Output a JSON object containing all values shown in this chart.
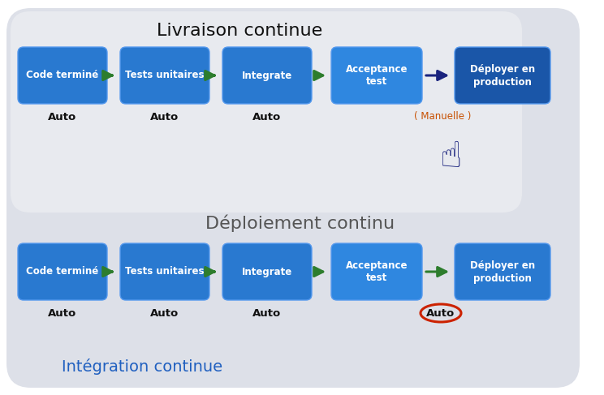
{
  "title_livraison": "Livraison continue",
  "title_deploiement": "Déploiement continu",
  "title_integration": "Intégration continue",
  "row1_boxes": [
    "Code terminé",
    "Tests unitaires",
    "Integrate",
    "Acceptance\ntest",
    "Déployer en\nproduction"
  ],
  "row2_boxes": [
    "Code terminé",
    "Tests unitaires",
    "Integrate",
    "Acceptance\ntest",
    "Déployer en\nproduction"
  ],
  "row1_auto_labels": [
    "Auto",
    "Auto",
    "Auto"
  ],
  "row1_manuelle": "( Manuelle )",
  "row2_auto_labels": [
    "Auto",
    "Auto",
    "Auto",
    "Auto"
  ],
  "box_colors_row1": [
    "#2979d0",
    "#2979d0",
    "#2979d0",
    "#2f87e0",
    "#1a56a8"
  ],
  "box_colors_row2": [
    "#2979d0",
    "#2979d0",
    "#2979d0",
    "#2f87e0",
    "#2979d0"
  ],
  "arrow_green": "#2d7d2d",
  "arrow_dark_navy": "#1a237e",
  "manuelle_color": "#c85000",
  "auto_circle_color": "#cc2200",
  "bg_outer": "#dde0e8",
  "bg_inner_livraison": "#e8eaef",
  "label_color": "#111111",
  "integration_title_color": "#2060c0",
  "deploiement_title_color": "#555555"
}
